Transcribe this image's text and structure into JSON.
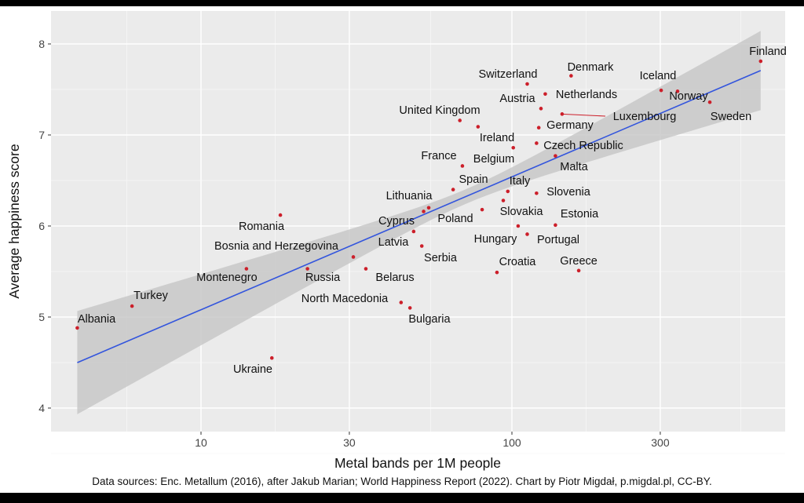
{
  "chart_data": {
    "type": "scatter",
    "title": "",
    "xlabel": "Metal bands per 1M people",
    "ylabel": "Average happiness score",
    "x_scale": "log10",
    "xlim": [
      3.3,
      800
    ],
    "ylim": [
      3.85,
      8.25
    ],
    "x_ticks": [
      10,
      30,
      100,
      300
    ],
    "y_ticks": [
      4,
      5,
      6,
      7,
      8
    ],
    "grid": true,
    "legend": "none",
    "points_color": "#cc1f2a",
    "fit": {
      "method": "linear regression with confidence band",
      "color": "#3355dd",
      "band_color": "#c8c8c8",
      "intercept_log10": 3.62,
      "slope_log10": 1.46
    },
    "points": [
      {
        "label": "Albania",
        "x": 4.0,
        "y": 4.88
      },
      {
        "label": "Turkey",
        "x": 6.0,
        "y": 5.12
      },
      {
        "label": "Montenegro",
        "x": 14.0,
        "y": 5.53
      },
      {
        "label": "Romania",
        "x": 18.0,
        "y": 6.12
      },
      {
        "label": "Ukraine",
        "x": 16.9,
        "y": 4.55
      },
      {
        "label": "Russia",
        "x": 22.0,
        "y": 5.53
      },
      {
        "label": "Bosnia and Herzegovina",
        "x": 30.9,
        "y": 5.66
      },
      {
        "label": "Belarus",
        "x": 33.9,
        "y": 5.53
      },
      {
        "label": "North Macedonia",
        "x": 44,
        "y": 5.16
      },
      {
        "label": "Bulgaria",
        "x": 47,
        "y": 5.1
      },
      {
        "label": "Latvia",
        "x": 48.3,
        "y": 5.94
      },
      {
        "label": "Serbia",
        "x": 51.3,
        "y": 5.78
      },
      {
        "label": "Cyprus",
        "x": 52,
        "y": 6.16
      },
      {
        "label": "Lithuania",
        "x": 54,
        "y": 6.2
      },
      {
        "label": "Spain",
        "x": 64.7,
        "y": 6.4
      },
      {
        "label": "France",
        "x": 69.3,
        "y": 6.66
      },
      {
        "label": "United Kingdom",
        "x": 68,
        "y": 7.16
      },
      {
        "label": "Ireland",
        "x": 77.8,
        "y": 7.09
      },
      {
        "label": "Poland",
        "x": 80.2,
        "y": 6.18
      },
      {
        "label": "Croatia",
        "x": 89.5,
        "y": 5.49
      },
      {
        "label": "Slovakia",
        "x": 93.8,
        "y": 6.28
      },
      {
        "label": "Italy",
        "x": 97,
        "y": 6.38
      },
      {
        "label": "Belgium",
        "x": 101,
        "y": 6.86
      },
      {
        "label": "Hungary",
        "x": 104.7,
        "y": 6.0
      },
      {
        "label": "Switzerland",
        "x": 112,
        "y": 7.56
      },
      {
        "label": "Portugal",
        "x": 112,
        "y": 5.91
      },
      {
        "label": "Slovenia",
        "x": 120,
        "y": 6.36
      },
      {
        "label": "Czech Republic",
        "x": 120,
        "y": 6.91
      },
      {
        "label": "Germany",
        "x": 122,
        "y": 7.08
      },
      {
        "label": "Austria",
        "x": 124,
        "y": 7.29
      },
      {
        "label": "Netherlands",
        "x": 128,
        "y": 7.45
      },
      {
        "label": "Luxembourg",
        "x": 145,
        "y": 7.23
      },
      {
        "label": "Malta",
        "x": 138,
        "y": 6.77
      },
      {
        "label": "Estonia",
        "x": 138,
        "y": 6.01
      },
      {
        "label": "Denmark",
        "x": 155,
        "y": 7.65
      },
      {
        "label": "Greece",
        "x": 164,
        "y": 5.51
      },
      {
        "label": "Iceland",
        "x": 302,
        "y": 7.49
      },
      {
        "label": "Norway",
        "x": 341,
        "y": 7.48
      },
      {
        "label": "Sweden",
        "x": 433,
        "y": 7.36
      },
      {
        "label": "Finland",
        "x": 631,
        "y": 7.81
      }
    ]
  },
  "caption": "Data sources: Enc. Metallum (2016), after Jakub Marian; World Happiness Report (2022). Chart by Piotr Migdał, p.migdal.pl, CC-BY."
}
